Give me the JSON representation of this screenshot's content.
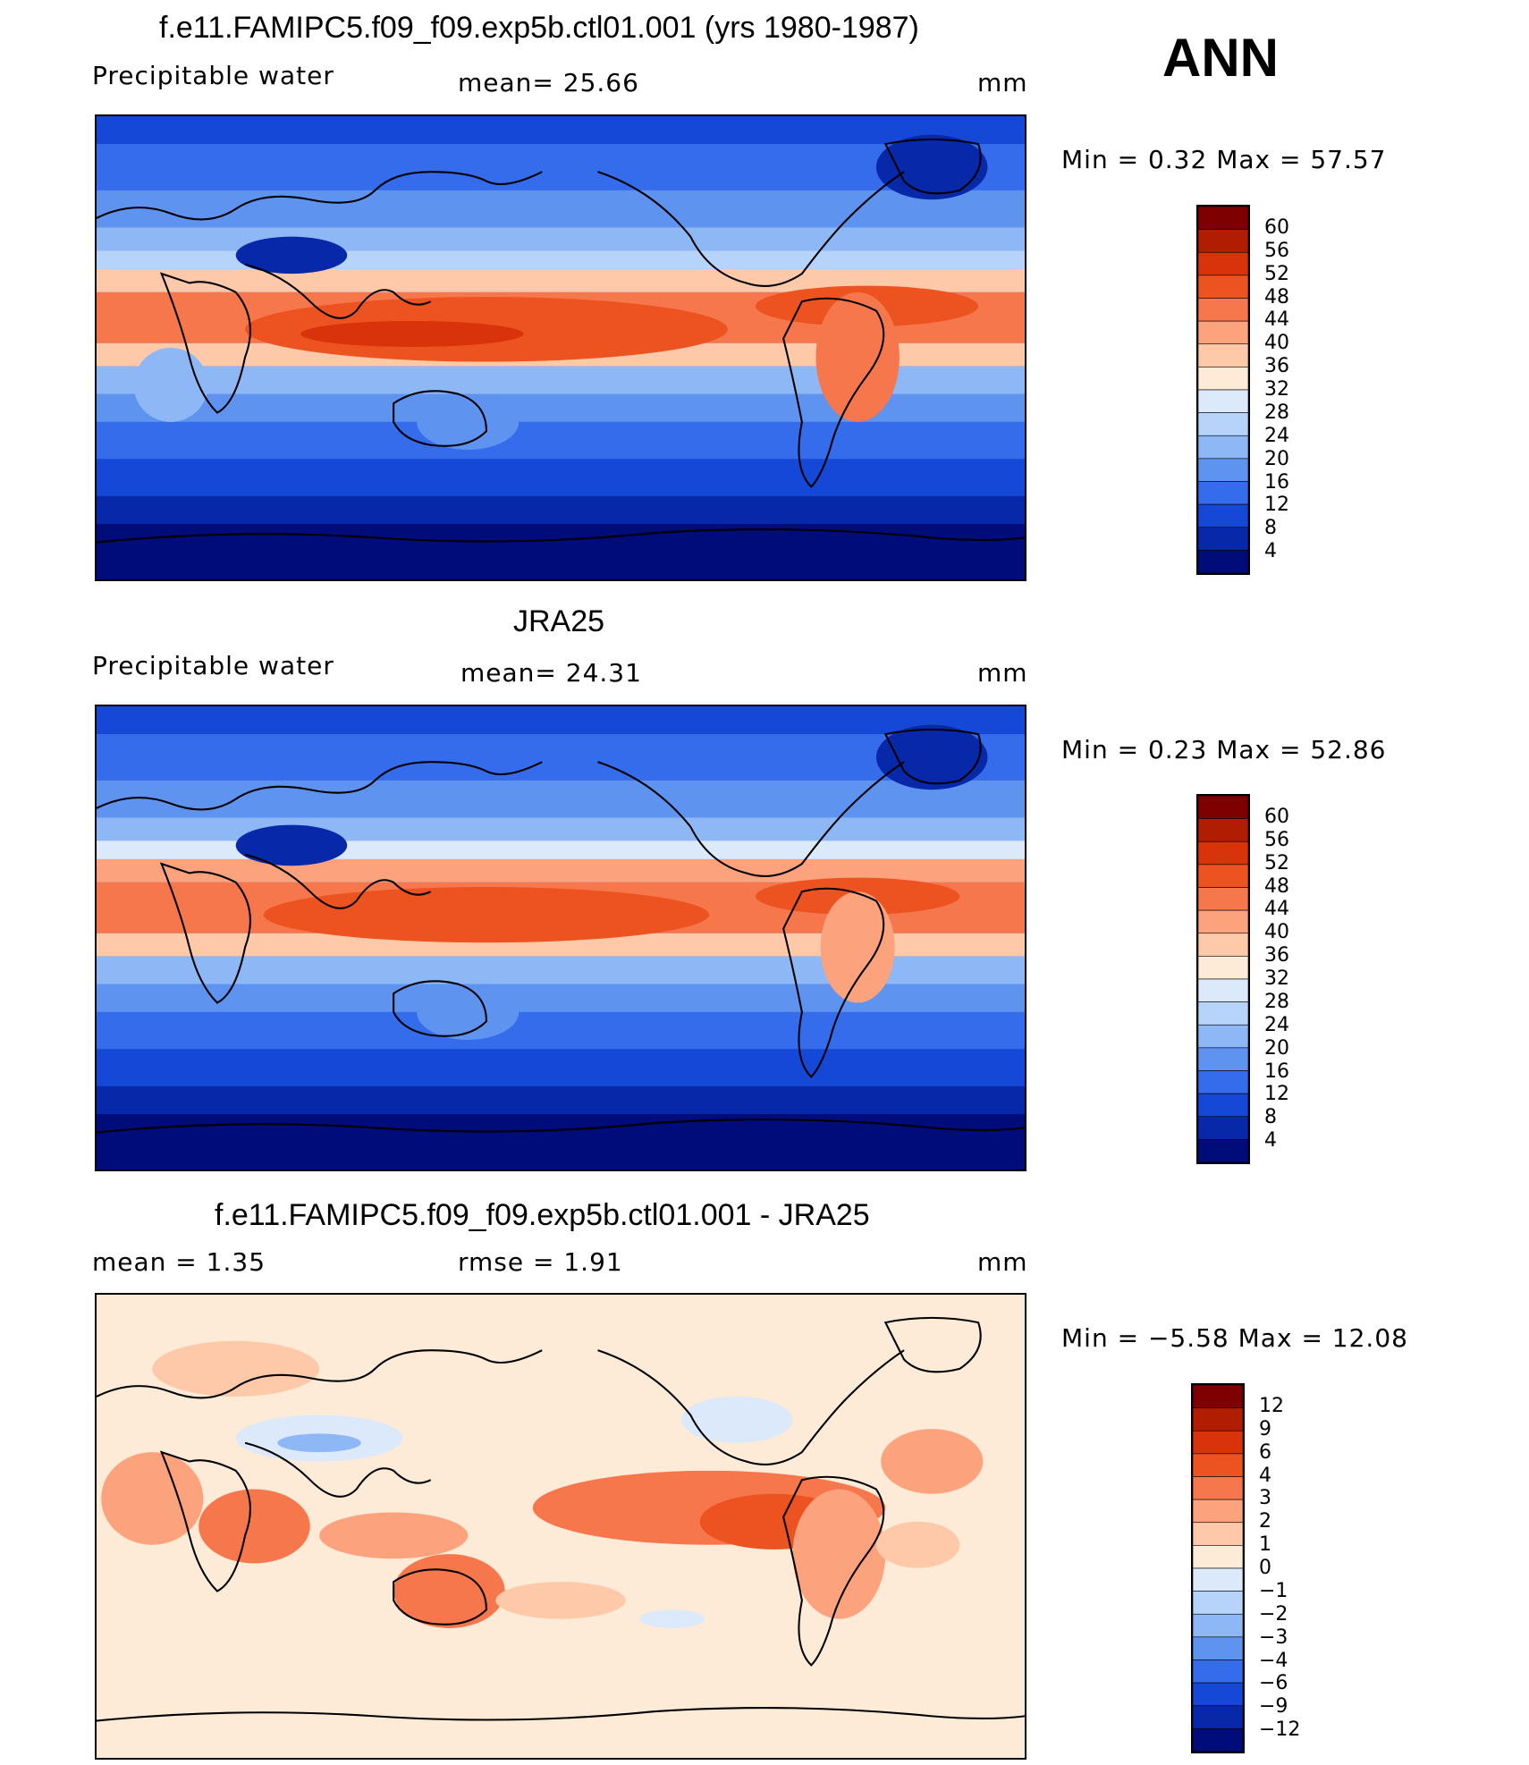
{
  "season": "ANN",
  "panels": [
    {
      "title": "f.e11.FAMIPC5.f09_f09.exp5b.ctl01.001 (yrs 1980-1987)",
      "left_label": "Precipitable  water",
      "center_label": "mean=   25.66",
      "units": "mm",
      "minmax": "Min  =     0.32  Max  =     57.57",
      "colorbar": {
        "levels": [
          "60",
          "56",
          "52",
          "48",
          "44",
          "40",
          "36",
          "32",
          "28",
          "24",
          "20",
          "16",
          "12",
          "8",
          "4"
        ],
        "colors": [
          "#7f0000",
          "#b01d00",
          "#d8330a",
          "#ed5320",
          "#f7774d",
          "#fca27c",
          "#fdc9a9",
          "#fdebd8",
          "#dbe9fb",
          "#b6d4fa",
          "#8db8f5",
          "#5f93f0",
          "#356cec",
          "#1548d6",
          "#0828aa",
          "#000c7a"
        ]
      }
    },
    {
      "title": "JRA25",
      "left_label": "Precipitable  water",
      "center_label": "mean=   24.31",
      "units": "mm",
      "minmax": "Min  =     0.23  Max  =     52.86",
      "colorbar": {
        "levels": [
          "60",
          "56",
          "52",
          "48",
          "44",
          "40",
          "36",
          "32",
          "28",
          "24",
          "20",
          "16",
          "12",
          "8",
          "4"
        ],
        "colors": [
          "#7f0000",
          "#b01d00",
          "#d8330a",
          "#ed5320",
          "#f7774d",
          "#fca27c",
          "#fdc9a9",
          "#fdebd8",
          "#dbe9fb",
          "#b6d4fa",
          "#8db8f5",
          "#5f93f0",
          "#356cec",
          "#1548d6",
          "#0828aa",
          "#000c7a"
        ]
      }
    },
    {
      "title": "f.e11.FAMIPC5.f09_f09.exp5b.ctl01.001 - JRA25",
      "left_label": "mean  =     1.35",
      "center_label": "rmse  =     1.91",
      "units": "mm",
      "minmax": "Min  =   −5.58  Max  =     12.08",
      "colorbar": {
        "levels": [
          "12",
          "9",
          "6",
          "4",
          "3",
          "2",
          "1",
          "0",
          "−1",
          "−2",
          "−3",
          "−4",
          "−6",
          "−9",
          "−12"
        ],
        "colors": [
          "#7f0000",
          "#b01d00",
          "#d8330a",
          "#ed5320",
          "#f7774d",
          "#fca27c",
          "#fdc9a9",
          "#fdebd8",
          "#dbe9fb",
          "#b6d4fa",
          "#8db8f5",
          "#5f93f0",
          "#356cec",
          "#1548d6",
          "#0828aa",
          "#000c7a"
        ]
      }
    }
  ]
}
